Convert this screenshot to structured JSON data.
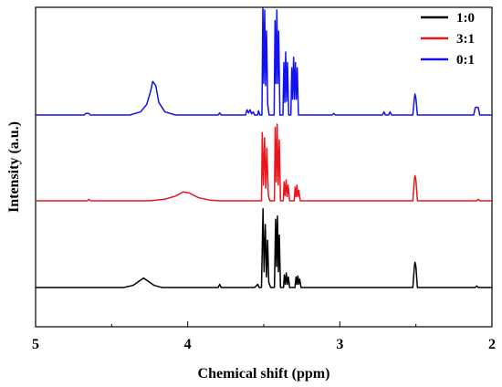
{
  "chart_data": {
    "type": "line",
    "title": "",
    "xlabel": "Chemical shift (ppm)",
    "ylabel": "Intensity (a.u.)",
    "xlim": [
      5,
      2
    ],
    "x_reversed": true,
    "x_ticks": [
      5,
      4,
      3,
      2
    ],
    "y_ticks": [],
    "grid": false,
    "legend_position": "top-right",
    "series": [
      {
        "name": "1:0",
        "color": "#000000",
        "points": [
          [
            5.0,
            0.0
          ],
          [
            4.42,
            0.0
          ],
          [
            4.36,
            0.2
          ],
          [
            4.32,
            0.6
          ],
          [
            4.29,
            0.9
          ],
          [
            4.26,
            0.6
          ],
          [
            4.22,
            0.2
          ],
          [
            4.17,
            0.0
          ],
          [
            3.8,
            0.0
          ],
          [
            3.79,
            0.3
          ],
          [
            3.78,
            0.0
          ],
          [
            3.56,
            0.0
          ],
          [
            3.54,
            0.3
          ],
          [
            3.53,
            0.0
          ],
          [
            3.515,
            0.0
          ],
          [
            3.505,
            7.5
          ],
          [
            3.498,
            1.5
          ],
          [
            3.49,
            6.0
          ],
          [
            3.482,
            1.0
          ],
          [
            3.475,
            4.5
          ],
          [
            3.467,
            0.5
          ],
          [
            3.455,
            0.0
          ],
          [
            3.43,
            0.0
          ],
          [
            3.422,
            6.5
          ],
          [
            3.416,
            2.0
          ],
          [
            3.41,
            6.8
          ],
          [
            3.404,
            1.5
          ],
          [
            3.398,
            5.0
          ],
          [
            3.39,
            0.0
          ],
          [
            3.37,
            0.0
          ],
          [
            3.365,
            1.2
          ],
          [
            3.358,
            0.3
          ],
          [
            3.352,
            1.4
          ],
          [
            3.345,
            0.3
          ],
          [
            3.338,
            1.0
          ],
          [
            3.33,
            0.0
          ],
          [
            3.295,
            0.0
          ],
          [
            3.288,
            1.0
          ],
          [
            3.282,
            0.3
          ],
          [
            3.276,
            1.1
          ],
          [
            3.27,
            0.3
          ],
          [
            3.264,
            0.8
          ],
          [
            3.255,
            0.0
          ],
          [
            2.52,
            0.0
          ],
          [
            2.51,
            2.0
          ],
          [
            2.506,
            2.4
          ],
          [
            2.5,
            2.0
          ],
          [
            2.49,
            0.0
          ],
          [
            2.11,
            0.0
          ],
          [
            2.1,
            0.15
          ],
          [
            2.09,
            0.0
          ],
          [
            2.0,
            0.0
          ]
        ]
      },
      {
        "name": "3:1",
        "color": "#e8161b",
        "points": [
          [
            5.0,
            0.0
          ],
          [
            4.66,
            0.0
          ],
          [
            4.65,
            0.15
          ],
          [
            4.64,
            0.0
          ],
          [
            4.25,
            0.0
          ],
          [
            4.15,
            0.15
          ],
          [
            4.08,
            0.45
          ],
          [
            4.03,
            0.85
          ],
          [
            3.99,
            0.75
          ],
          [
            3.93,
            0.3
          ],
          [
            3.85,
            0.05
          ],
          [
            3.79,
            0.0
          ],
          [
            3.515,
            0.0
          ],
          [
            3.51,
            6.5
          ],
          [
            3.502,
            1.5
          ],
          [
            3.495,
            6.0
          ],
          [
            3.487,
            1.2
          ],
          [
            3.48,
            5.0
          ],
          [
            3.47,
            0.5
          ],
          [
            3.46,
            0.0
          ],
          [
            3.43,
            0.0
          ],
          [
            3.425,
            7.0
          ],
          [
            3.418,
            1.8
          ],
          [
            3.412,
            7.3
          ],
          [
            3.405,
            1.5
          ],
          [
            3.398,
            5.8
          ],
          [
            3.39,
            0.0
          ],
          [
            3.372,
            0.0
          ],
          [
            3.366,
            1.8
          ],
          [
            3.36,
            0.5
          ],
          [
            3.353,
            2.0
          ],
          [
            3.347,
            0.4
          ],
          [
            3.34,
            1.5
          ],
          [
            3.33,
            0.0
          ],
          [
            3.3,
            0.0
          ],
          [
            3.294,
            1.3
          ],
          [
            3.288,
            0.4
          ],
          [
            3.282,
            1.5
          ],
          [
            3.276,
            0.4
          ],
          [
            3.27,
            1.0
          ],
          [
            3.26,
            0.0
          ],
          [
            2.52,
            0.0
          ],
          [
            2.51,
            2.0
          ],
          [
            2.506,
            2.4
          ],
          [
            2.5,
            2.0
          ],
          [
            2.49,
            0.0
          ],
          [
            2.1,
            0.0
          ],
          [
            2.09,
            0.15
          ],
          [
            2.08,
            0.0
          ],
          [
            2.0,
            0.0
          ]
        ]
      },
      {
        "name": "0:1",
        "color": "#1212ee",
        "points": [
          [
            5.0,
            0.0
          ],
          [
            4.68,
            0.0
          ],
          [
            4.67,
            0.15
          ],
          [
            4.65,
            0.15
          ],
          [
            4.64,
            0.0
          ],
          [
            4.38,
            0.0
          ],
          [
            4.31,
            0.3
          ],
          [
            4.27,
            1.0
          ],
          [
            4.245,
            2.2
          ],
          [
            4.23,
            3.2
          ],
          [
            4.21,
            2.8
          ],
          [
            4.19,
            1.2
          ],
          [
            4.15,
            0.3
          ],
          [
            4.08,
            0.0
          ],
          [
            3.8,
            0.0
          ],
          [
            3.79,
            0.2
          ],
          [
            3.78,
            0.0
          ],
          [
            3.62,
            0.0
          ],
          [
            3.61,
            0.5
          ],
          [
            3.6,
            0.2
          ],
          [
            3.59,
            0.5
          ],
          [
            3.58,
            0.1
          ],
          [
            3.57,
            0.3
          ],
          [
            3.56,
            0.0
          ],
          [
            3.54,
            0.0
          ],
          [
            3.535,
            0.4
          ],
          [
            3.525,
            0.0
          ],
          [
            3.512,
            0.0
          ],
          [
            3.506,
            10.5
          ],
          [
            3.5,
            3.0
          ],
          [
            3.494,
            10.0
          ],
          [
            3.488,
            2.8
          ],
          [
            3.482,
            8.0
          ],
          [
            3.474,
            1.0
          ],
          [
            3.465,
            0.0
          ],
          [
            3.432,
            0.0
          ],
          [
            3.426,
            9.0
          ],
          [
            3.42,
            3.0
          ],
          [
            3.414,
            10.0
          ],
          [
            3.408,
            3.0
          ],
          [
            3.402,
            8.0
          ],
          [
            3.394,
            0.0
          ],
          [
            3.374,
            0.0
          ],
          [
            3.368,
            5.0
          ],
          [
            3.362,
            1.2
          ],
          [
            3.356,
            6.0
          ],
          [
            3.35,
            1.3
          ],
          [
            3.344,
            5.0
          ],
          [
            3.336,
            0.0
          ],
          [
            3.322,
            0.0
          ],
          [
            3.316,
            4.5
          ],
          [
            3.31,
            1.5
          ],
          [
            3.304,
            5.5
          ],
          [
            3.298,
            1.5
          ],
          [
            3.292,
            5.0
          ],
          [
            3.286,
            1.5
          ],
          [
            3.28,
            4.5
          ],
          [
            3.272,
            0.0
          ],
          [
            3.05,
            0.0
          ],
          [
            3.04,
            0.15
          ],
          [
            3.03,
            0.0
          ],
          [
            2.72,
            0.0
          ],
          [
            2.71,
            0.3
          ],
          [
            2.7,
            0.0
          ],
          [
            2.68,
            0.0
          ],
          [
            2.67,
            0.3
          ],
          [
            2.66,
            0.0
          ],
          [
            2.52,
            0.0
          ],
          [
            2.51,
            1.6
          ],
          [
            2.506,
            2.0
          ],
          [
            2.5,
            1.6
          ],
          [
            2.49,
            0.0
          ],
          [
            2.12,
            0.0
          ],
          [
            2.11,
            0.7
          ],
          [
            2.1,
            0.75
          ],
          [
            2.09,
            0.7
          ],
          [
            2.08,
            0.0
          ],
          [
            2.0,
            0.0
          ]
        ]
      }
    ]
  }
}
